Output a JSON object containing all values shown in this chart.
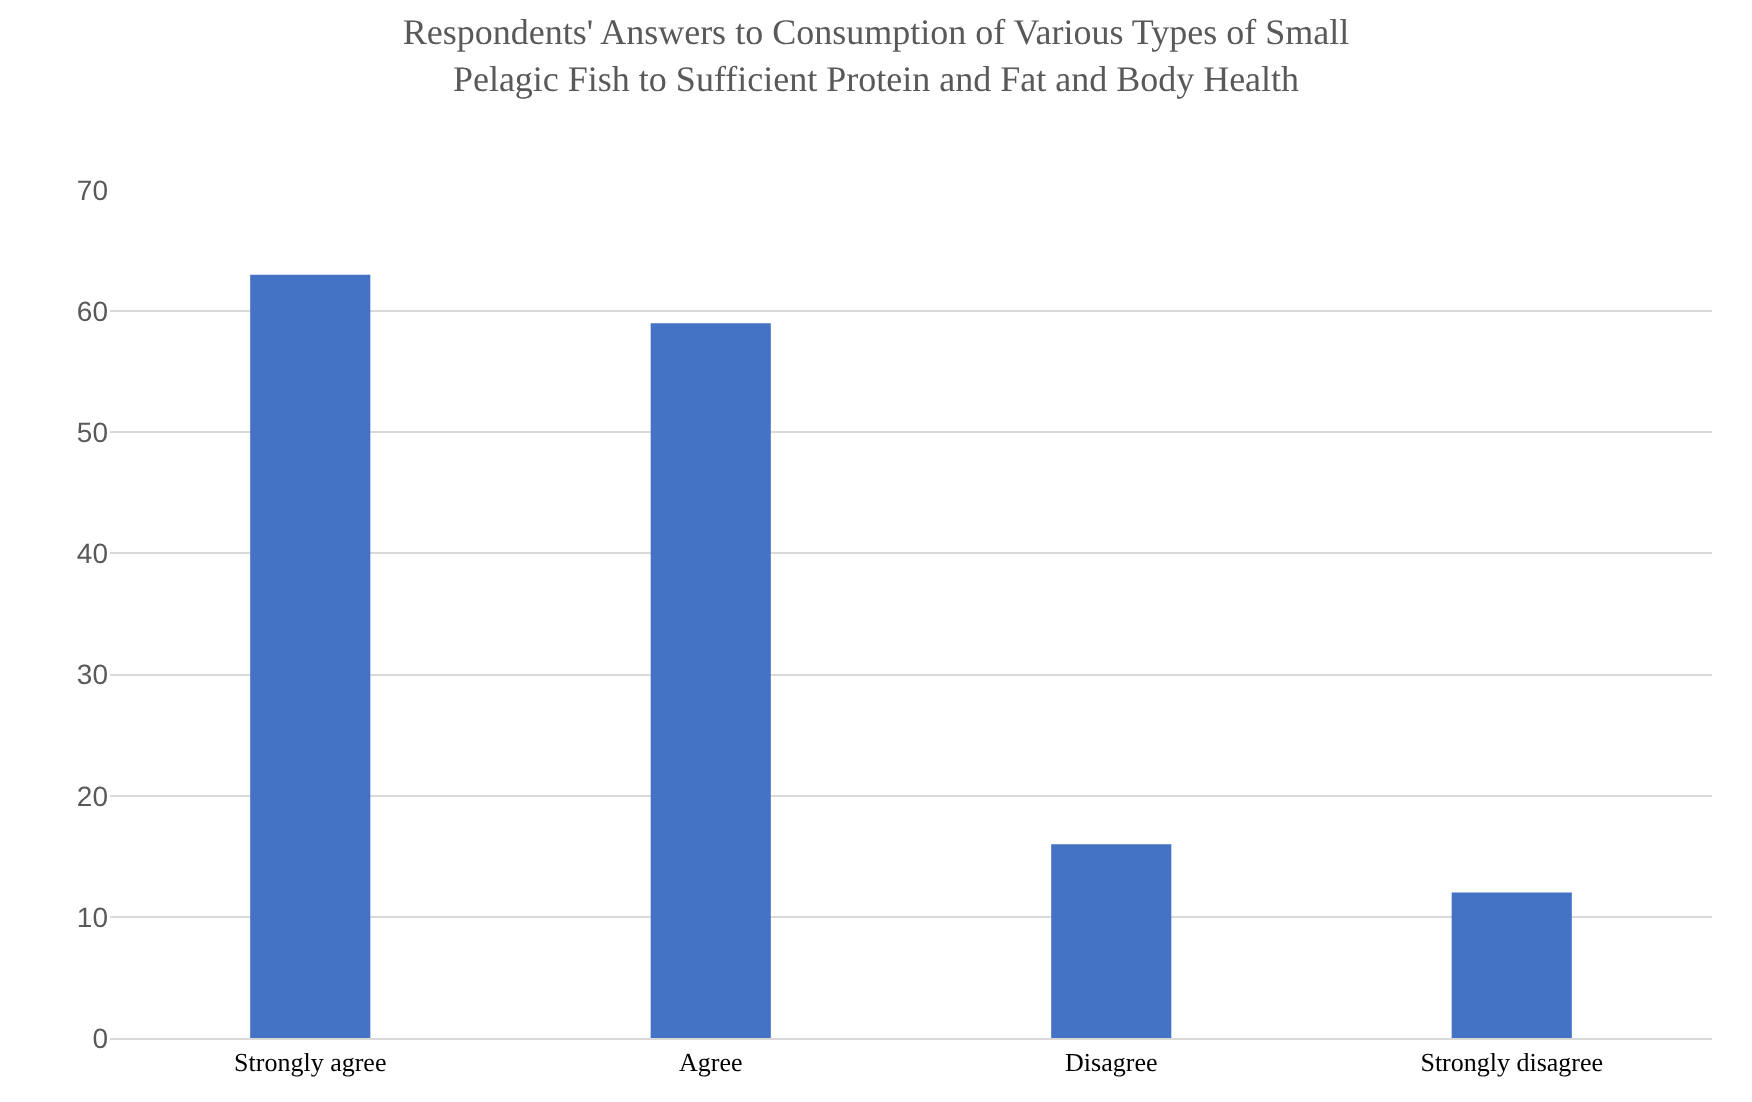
{
  "chart_data": {
    "type": "bar",
    "title": "Respondents' Answers to Consumption of Various Types of Small Pelagic Fish to Sufficient Protein and Fat and Body Health",
    "categories": [
      "Strongly agree",
      "Agree",
      "Disagree",
      "Strongly disagree"
    ],
    "values": [
      63,
      59,
      16,
      12
    ],
    "color": "#4472c4",
    "ylim": [
      0,
      70
    ],
    "yticks": [
      0,
      10,
      20,
      30,
      40,
      50,
      60,
      70
    ],
    "grid": "y"
  }
}
